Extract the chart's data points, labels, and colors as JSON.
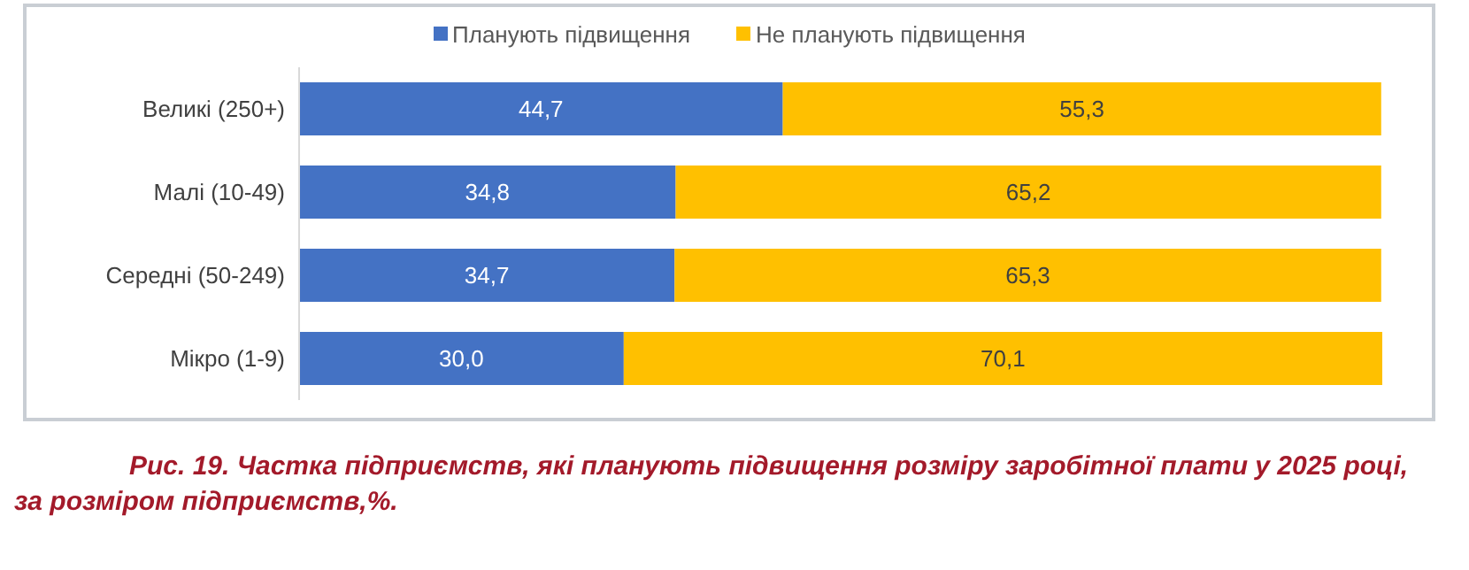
{
  "chart_data": {
    "type": "bar",
    "orientation": "horizontal",
    "stacked": true,
    "legend": "top",
    "grid": false,
    "categories": [
      "Великі (250+)",
      "Малі (10-49)",
      "Середні (50-249)",
      "Мікро (1-9)"
    ],
    "series": [
      {
        "name": "Планують підвищення",
        "color": "#4472c4",
        "values": [
          44.7,
          34.8,
          34.7,
          30.0
        ],
        "value_labels": [
          "44,7",
          "34,8",
          "34,7",
          "30,0"
        ]
      },
      {
        "name": "Не планують підвищення",
        "color": "#ffc000",
        "values": [
          55.3,
          65.2,
          65.3,
          70.1
        ],
        "value_labels": [
          "55,3",
          "65,2",
          "65,3",
          "70,1"
        ]
      }
    ],
    "annotations": [
      "Рис. 19. Частка підприємств, які планують підвищення розміру заробітної плати у 2025 році, за розміром підприємств,%."
    ]
  }
}
